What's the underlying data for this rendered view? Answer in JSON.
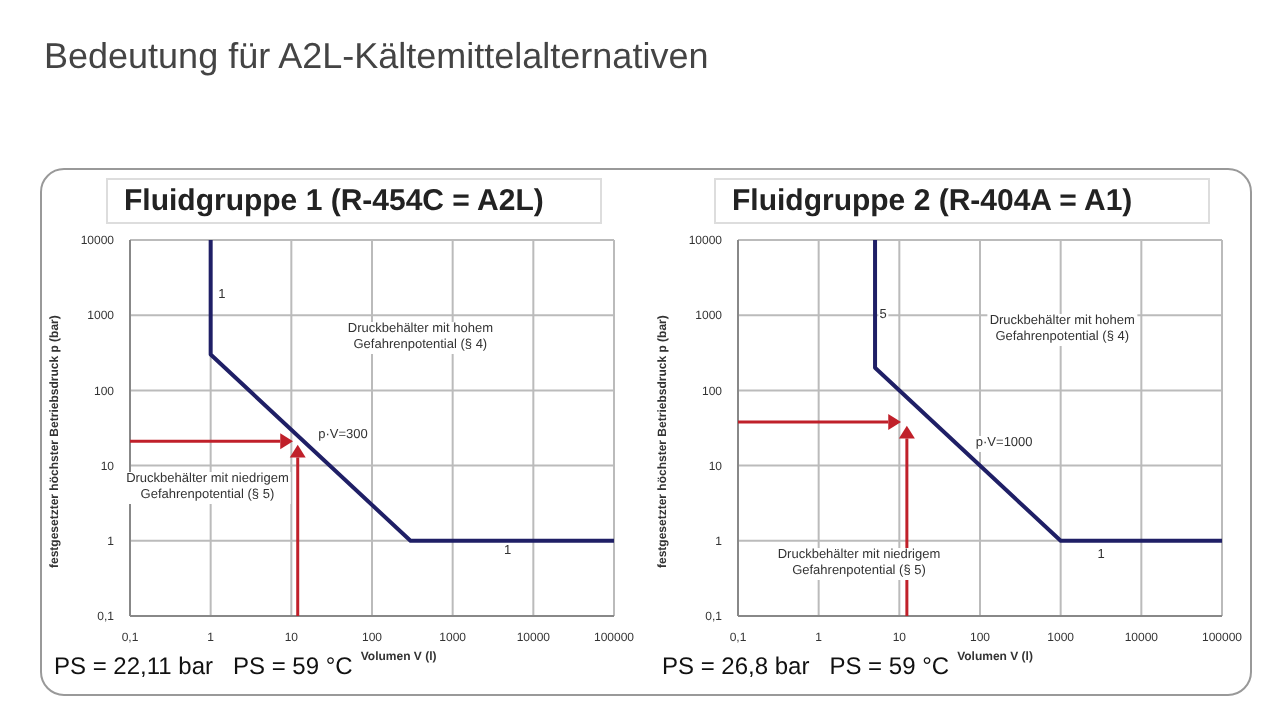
{
  "chart_data": [
    {
      "type": "line",
      "title": "Fluidgruppe 1 (R-454C = A2L)",
      "xlabel": "Volumen V (l)",
      "ylabel": "festgesetzter höchster Betriebsdruck p (bar)",
      "log": "xy",
      "grid": true,
      "xlim": [
        0.1,
        100000
      ],
      "xticks": [
        {
          "value": 0.1,
          "label": "0,1"
        },
        1,
        10,
        100,
        1000,
        10000,
        100000
      ],
      "ylim": [
        0.1,
        10000
      ],
      "yticks": [
        {
          "value": 0.1,
          "label": "0,1"
        },
        1,
        10,
        100,
        1000,
        10000
      ],
      "series": [
        {
          "color": "#1f1f66",
          "x": [
            1,
            1,
            300,
            100000
          ],
          "values": [
            10000,
            300,
            1,
            1
          ]
        }
      ],
      "annotations": [
        "Bedeutung für A2L-Kältemittelalternativen",
        "PS = 22,11 bar   PS = 59 °C",
        "p·V=300",
        "Druckbehälter mit hohem\nGefahrenpotential (§ 4)",
        "Druckbehälter mit niedrigem\nGefahrenpotential (§ 5)",
        "1",
        "1"
      ]
    },
    {
      "type": "line",
      "title": "Fluidgruppe 2 (R-404A = A1)",
      "xlabel": "Volumen V (l)",
      "ylabel": "festgesetzter höchster Betriebsdruck p (bar)",
      "log": "xy",
      "grid": true,
      "xlim": [
        0.1,
        100000
      ],
      "xticks": [
        {
          "value": 0.1,
          "label": "0,1"
        },
        1,
        10,
        100,
        1000,
        10000,
        100000
      ],
      "ylim": [
        0.1,
        10000
      ],
      "yticks": [
        {
          "value": 0.1,
          "label": "0,1"
        },
        1,
        10,
        100,
        1000,
        10000
      ],
      "series": [
        {
          "color": "#1f1f66",
          "x": [
            5,
            5,
            1000,
            100000
          ],
          "values": [
            10000,
            200,
            1,
            1
          ]
        }
      ],
      "annotations": [
        "PS = 26,8 bar   PS = 59 °C",
        "p·V=1000",
        "Druckbehälter mit hohem\nGefahrenpotential (§ 4)",
        "Druckbehälter mit niedrigem\nGefahrenpotential (§ 5)",
        "5",
        "1"
      ]
    }
  ]
}
